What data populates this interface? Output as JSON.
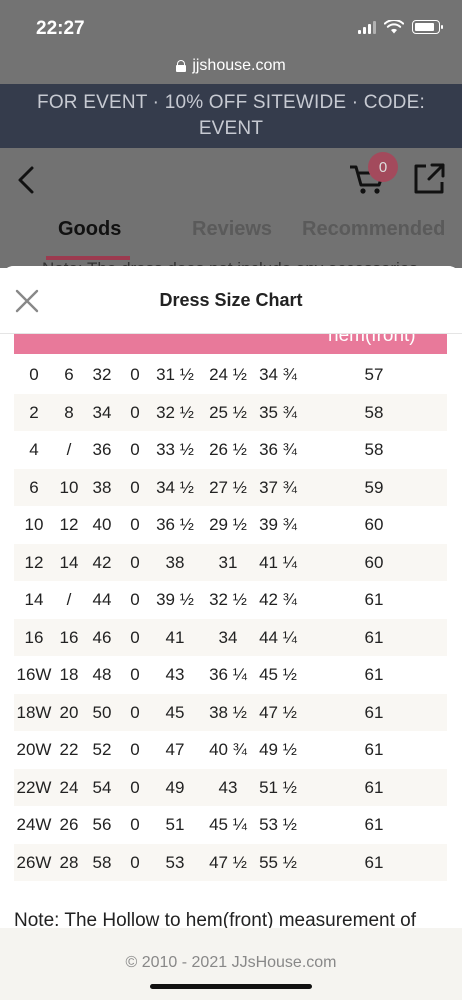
{
  "status_bar": {
    "time": "22:27",
    "battery_level": 0.85
  },
  "browser": {
    "url": "jjshouse.com"
  },
  "promo": {
    "text": "FOR EVENT · 10% OFF SITEWIDE · CODE: EVENT"
  },
  "header": {
    "cart_count": "0",
    "tabs": [
      {
        "label": "Goods",
        "active": true
      },
      {
        "label": "Reviews",
        "active": false
      },
      {
        "label": "Recommended",
        "active": false
      }
    ],
    "peek_note": "Note: The dress does not include any accessories"
  },
  "sheet": {
    "title": "Dress Size Chart",
    "header_partial": "hem(front)",
    "rows": [
      [
        "0",
        "6",
        "32",
        "0",
        "31 ½",
        "24 ½",
        "34 ¾",
        "57"
      ],
      [
        "2",
        "8",
        "34",
        "0",
        "32 ½",
        "25 ½",
        "35 ¾",
        "58"
      ],
      [
        "4",
        "/",
        "36",
        "0",
        "33 ½",
        "26 ½",
        "36 ¾",
        "58"
      ],
      [
        "6",
        "10",
        "38",
        "0",
        "34 ½",
        "27 ½",
        "37 ¾",
        "59"
      ],
      [
        "10",
        "12",
        "40",
        "0",
        "36 ½",
        "29 ½",
        "39 ¾",
        "60"
      ],
      [
        "12",
        "14",
        "42",
        "0",
        "38",
        "31",
        "41 ¼",
        "60"
      ],
      [
        "14",
        "/",
        "44",
        "0",
        "39 ½",
        "32 ½",
        "42 ¾",
        "61"
      ],
      [
        "16",
        "16",
        "46",
        "0",
        "41",
        "34",
        "44 ¼",
        "61"
      ],
      [
        "16W",
        "18",
        "48",
        "0",
        "43",
        "36 ¼",
        "45 ½",
        "61"
      ],
      [
        "18W",
        "20",
        "50",
        "0",
        "45",
        "38 ½",
        "47 ½",
        "61"
      ],
      [
        "20W",
        "22",
        "52",
        "0",
        "47",
        "40 ¾",
        "49 ½",
        "61"
      ],
      [
        "22W",
        "24",
        "54",
        "0",
        "49",
        "43",
        "51 ½",
        "61"
      ],
      [
        "24W",
        "26",
        "56",
        "0",
        "51",
        "45 ¼",
        "53 ½",
        "61"
      ],
      [
        "26W",
        "28",
        "58",
        "0",
        "53",
        "47 ½",
        "55 ½",
        "61"
      ]
    ],
    "note": "Note: The Hollow to hem(front) measurement of",
    "footer": "© 2010 - 2021 JJsHouse.com"
  },
  "colors": {
    "promo_bg": "#353c4c",
    "table_header": "#e8799a",
    "cart_badge": "#a34a5c",
    "tab_underline": "#9c3a4f"
  },
  "icons": [
    "lock-icon",
    "back-chevron-icon",
    "cart-icon",
    "share-icon",
    "close-icon",
    "signal-icon",
    "wifi-icon",
    "battery-icon"
  ]
}
